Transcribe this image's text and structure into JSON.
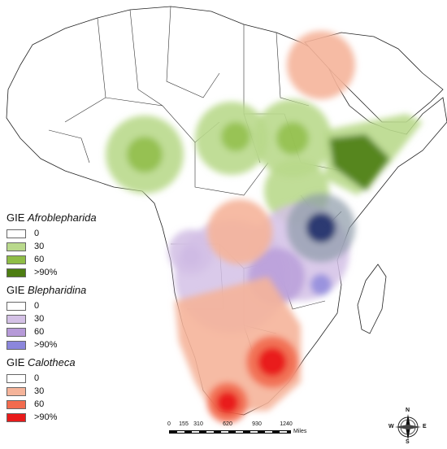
{
  "legend": {
    "groups": [
      {
        "title_prefix": "GIE ",
        "title_taxon": "Afroblepharida",
        "items": [
          {
            "label": "0",
            "color": "#ffffff"
          },
          {
            "label": "30",
            "color": "#b9d98c"
          },
          {
            "label": "60",
            "color": "#8fbd46"
          },
          {
            "label": ">90%",
            "color": "#4d7d12"
          }
        ]
      },
      {
        "title_prefix": "GIE ",
        "title_taxon": "Blepharidina",
        "items": [
          {
            "label": "0",
            "color": "#ffffff"
          },
          {
            "label": "30",
            "color": "#d4c1e6"
          },
          {
            "label": "60",
            "color": "#b69ad8"
          },
          {
            "label": ">90%",
            "color": "#8b86dc"
          }
        ]
      },
      {
        "title_prefix": "GIE ",
        "title_taxon": "Calotheca",
        "items": [
          {
            "label": "0",
            "color": "#ffffff"
          },
          {
            "label": "30",
            "color": "#f5b49a"
          },
          {
            "label": "60",
            "color": "#f26b4e"
          },
          {
            "label": ">90%",
            "color": "#e81a1a"
          }
        ]
      }
    ]
  },
  "scale_bar": {
    "ticks": [
      "0",
      "155",
      "310",
      "620",
      "930",
      "1240"
    ],
    "unit": "Miles"
  },
  "north_arrow": {
    "n": "N",
    "s": "S",
    "e": "E",
    "w": "W"
  }
}
